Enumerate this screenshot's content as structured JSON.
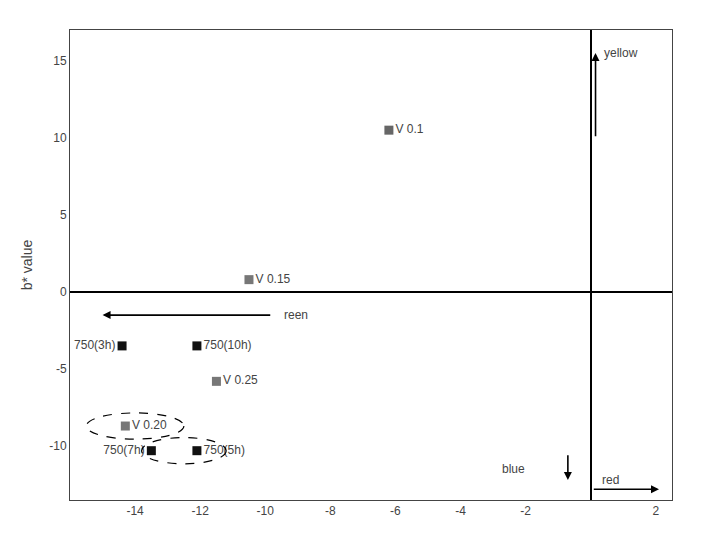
{
  "chart_data": {
    "type": "scatter",
    "ylabel": "b* value",
    "marker": "square",
    "grid": false,
    "points": [
      {
        "x": -6.2,
        "y": 10.5,
        "label": "V 0.1",
        "color": "#666666"
      },
      {
        "x": -10.5,
        "y": 0.8,
        "label": "V 0.15",
        "color": "#777777"
      },
      {
        "x": -11.5,
        "y": -5.8,
        "label": "V 0.25",
        "color": "#777777"
      },
      {
        "x": -14.4,
        "y": -3.5,
        "label": "750(3h)",
        "color": "#111111"
      },
      {
        "x": -12.1,
        "y": -3.5,
        "label": "750(10h)",
        "color": "#111111"
      },
      {
        "x": -14.3,
        "y": -8.7,
        "label": "V 0.20",
        "color": "#777777"
      },
      {
        "x": -13.5,
        "y": -10.3,
        "label": "750(7h)",
        "color": "#111111"
      },
      {
        "x": -12.1,
        "y": -10.3,
        "label": "750(5h)",
        "color": "#111111"
      }
    ],
    "ellipses": [
      {
        "cx": -14.0,
        "cy": -8.7,
        "w": 3.0,
        "h": 1.7
      },
      {
        "cx": -12.5,
        "cy": -10.3,
        "w": 2.6,
        "h": 1.7
      }
    ],
    "annotations": [
      {
        "text": "yellow",
        "x": 0.35,
        "y": 15.5,
        "arrow_from": [
          0.15,
          10.0
        ],
        "arrow_to": [
          0.15,
          15.5
        ]
      },
      {
        "text": "blue",
        "x": -2.8,
        "y": -11.5,
        "arrow_from": [
          -0.7,
          -10.5
        ],
        "arrow_to": [
          -0.7,
          -12.2
        ]
      },
      {
        "text": "red",
        "x": 0.3,
        "y": -12.2,
        "arrow_from": [
          0.05,
          -12.8
        ],
        "arrow_to": [
          2.1,
          -12.8
        ]
      },
      {
        "text": "reen",
        "x": -9.5,
        "y": -1.5,
        "arrow_from": [
          -9.8,
          -1.5
        ],
        "arrow_to": [
          -15.0,
          -1.5
        ]
      }
    ],
    "xlim": [
      -16,
      2.5
    ],
    "ylim": [
      -13.5,
      17
    ],
    "xticks": [
      -14,
      -12,
      -10,
      -8,
      -6,
      -4,
      -2,
      2
    ],
    "yticks": [
      -10,
      -5,
      0,
      5,
      10,
      15
    ]
  }
}
